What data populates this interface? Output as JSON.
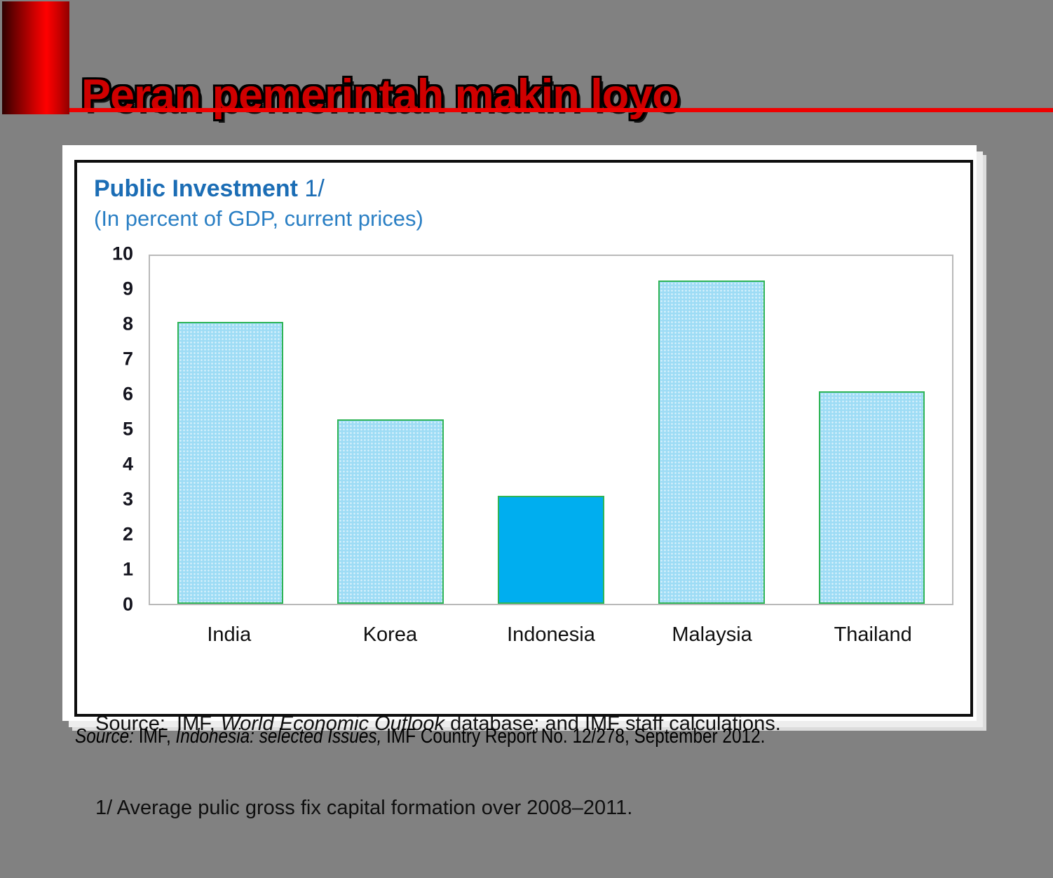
{
  "slide": {
    "title": "Peran pemerintah makin loyo"
  },
  "chart_data": {
    "type": "bar",
    "title_bold": "Public Investment",
    "title_suffix": " 1/",
    "subtitle": "(In percent of GDP, current prices)",
    "categories": [
      "India",
      "Korea",
      "Indonesia",
      "Malaysia",
      "Thailand"
    ],
    "values": [
      8.1,
      5.3,
      3.1,
      9.3,
      6.1
    ],
    "ylim": [
      0,
      10
    ],
    "yticks": [
      0,
      1,
      2,
      3,
      4,
      5,
      6,
      7,
      8,
      9,
      10
    ],
    "grid": false,
    "legend": false,
    "highlight_index": 2,
    "colors": {
      "bar_fill": "#9edcf5",
      "bar_border": "#2eb457",
      "highlight_fill": "#00aeef",
      "title_blue": "#1b6db5",
      "subtitle_blue": "#2a7fc4"
    },
    "source_note": {
      "line1_prefix": "Source:  IMF, ",
      "line1_italic": "World Economic Outlook",
      "line1_suffix": " database; and IMF staff calculations.",
      "line2": "1/ Average pulic gross fix capital formation over 2008–2011."
    }
  },
  "caption": {
    "italic1": "Source:",
    "plain1": " IMF, ",
    "italic2": "Indonesia: selected Issues,",
    "plain2": " IMF Country Report No. 12/278, September 2012."
  },
  "colors": {
    "background": "#818181",
    "accent_red": "#ef0000",
    "title_red": "#cf0000"
  }
}
